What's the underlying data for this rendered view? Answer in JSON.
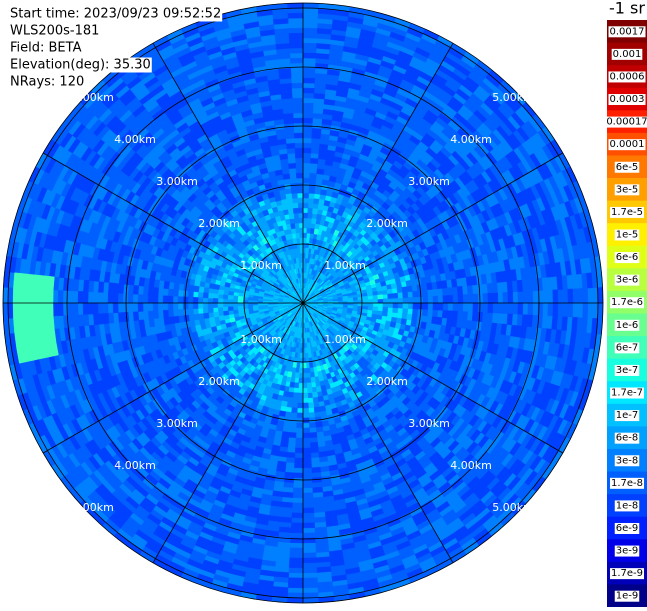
{
  "info": [
    "Start time: 2023/09/23 09:52:52",
    "WLS200s-181",
    "Field: BETA",
    "Elevation(deg): 35.30",
    "NRays: 120"
  ],
  "ring_labels": [
    "1.00km",
    "2.00km",
    "3.00km",
    "4.00km",
    "5.00km"
  ],
  "colorbar": {
    "title": "-1 sr",
    "labels": [
      "0.0017",
      "0.001",
      "0.0006",
      "0.0003",
      "0.00017",
      "0.0001",
      "6e-5",
      "3e-5",
      "1.7e-5",
      "1e-5",
      "6e-6",
      "3e-6",
      "1.7e-6",
      "1e-6",
      "6e-7",
      "3e-7",
      "1.7e-7",
      "1e-7",
      "6e-8",
      "3e-8",
      "1.7e-8",
      "1e-8",
      "6e-9",
      "3e-9",
      "1.7e-9",
      "1e-9"
    ],
    "colors": [
      "#800000",
      "#a00000",
      "#c00000",
      "#e00000",
      "#ff2000",
      "#ff5000",
      "#ff7800",
      "#ffa000",
      "#ffc800",
      "#fff000",
      "#e0ff18",
      "#b8ff40",
      "#90ff68",
      "#68ff90",
      "#40ffb8",
      "#18ffe0",
      "#00e8ff",
      "#00c0ff",
      "#00a0ff",
      "#0080ff",
      "#0060ff",
      "#0040ff",
      "#0020ff",
      "#0000e8",
      "#0000b8",
      "#000088"
    ]
  }
}
